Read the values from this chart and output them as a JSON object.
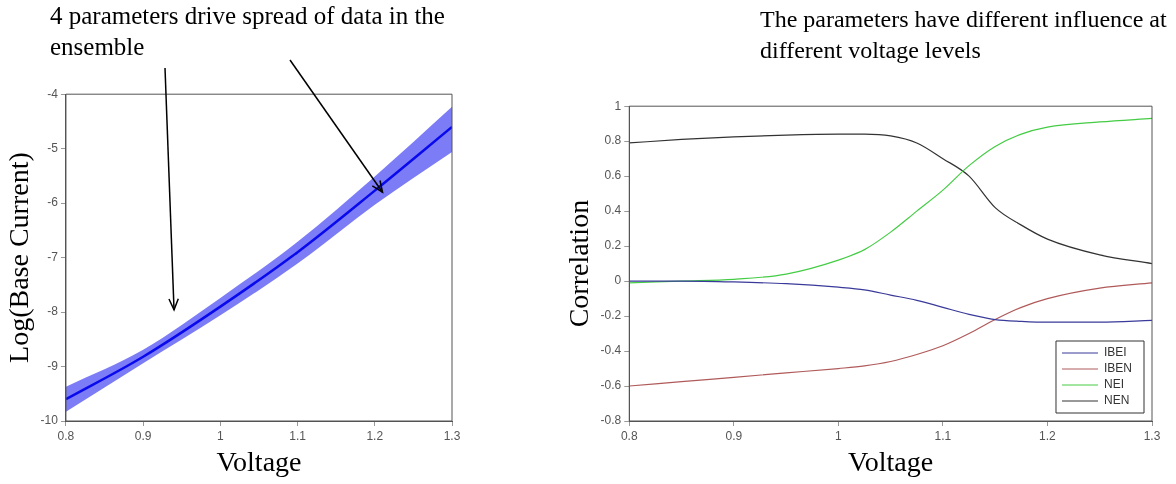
{
  "chart_data": [
    {
      "type": "line",
      "annotations": [
        "4 parameters drive spread of data in the ensemble"
      ],
      "ylabel": "Log(Base Current)",
      "xlabel": "Voltage",
      "x": [
        0.8,
        0.9,
        1.0,
        1.1,
        1.2,
        1.3
      ],
      "series": [
        {
          "color": "#0a0aee",
          "values": [
            -9.6,
            -8.82,
            -7.9,
            -6.9,
            -5.77,
            -4.6
          ],
          "lower": [
            -9.83,
            -8.94,
            -8.06,
            -7.11,
            -6.03,
            -5.06
          ],
          "upper": [
            -9.37,
            -8.69,
            -7.74,
            -6.71,
            -5.51,
            -4.23
          ]
        }
      ],
      "xlim": [
        0.8,
        1.3
      ],
      "xticks": [
        0.8,
        0.9,
        1,
        1.1,
        1.2,
        1.3
      ],
      "ylim": [
        -10,
        -4
      ],
      "yticks": [
        -10,
        -9,
        -8,
        -7,
        -6,
        -5,
        -4
      ],
      "grid": false
    },
    {
      "type": "line",
      "title": "The parameters have different influence at different voltage levels",
      "ylabel": "Correlation",
      "xlabel": "Voltage",
      "x": [
        0.8,
        0.85,
        0.9,
        0.95,
        1.0,
        1.025,
        1.05,
        1.075,
        1.1,
        1.125,
        1.15,
        1.175,
        1.2,
        1.25,
        1.3
      ],
      "series": [
        {
          "name": "IBEI",
          "color": "#3a3a9a",
          "values": [
            0.0,
            0.0,
            -0.005,
            -0.015,
            -0.035,
            -0.05,
            -0.08,
            -0.11,
            -0.15,
            -0.19,
            -0.22,
            -0.23,
            -0.235,
            -0.235,
            -0.225
          ]
        },
        {
          "name": "IBEN",
          "color": "#b05a5a",
          "values": [
            -0.6,
            -0.575,
            -0.55,
            -0.525,
            -0.5,
            -0.485,
            -0.46,
            -0.42,
            -0.37,
            -0.3,
            -0.22,
            -0.15,
            -0.1,
            -0.04,
            -0.01
          ]
        },
        {
          "name": "NEI",
          "color": "#44cc44",
          "values": [
            -0.01,
            0.0,
            0.01,
            0.04,
            0.12,
            0.18,
            0.28,
            0.4,
            0.52,
            0.66,
            0.77,
            0.84,
            0.88,
            0.91,
            0.93
          ]
        },
        {
          "name": "NEN",
          "color": "#333333",
          "values": [
            0.79,
            0.81,
            0.825,
            0.835,
            0.84,
            0.84,
            0.83,
            0.79,
            0.7,
            0.6,
            0.42,
            0.32,
            0.24,
            0.15,
            0.1
          ]
        }
      ],
      "xlim": [
        0.8,
        1.3
      ],
      "xticks": [
        0.8,
        0.9,
        1,
        1.1,
        1.2,
        1.3
      ],
      "ylim": [
        -0.8,
        1
      ],
      "yticks": [
        -0.8,
        -0.6,
        -0.4,
        -0.2,
        0,
        0.2,
        0.4,
        0.6,
        0.8,
        1
      ],
      "grid": false,
      "legend": "bottom right"
    }
  ]
}
